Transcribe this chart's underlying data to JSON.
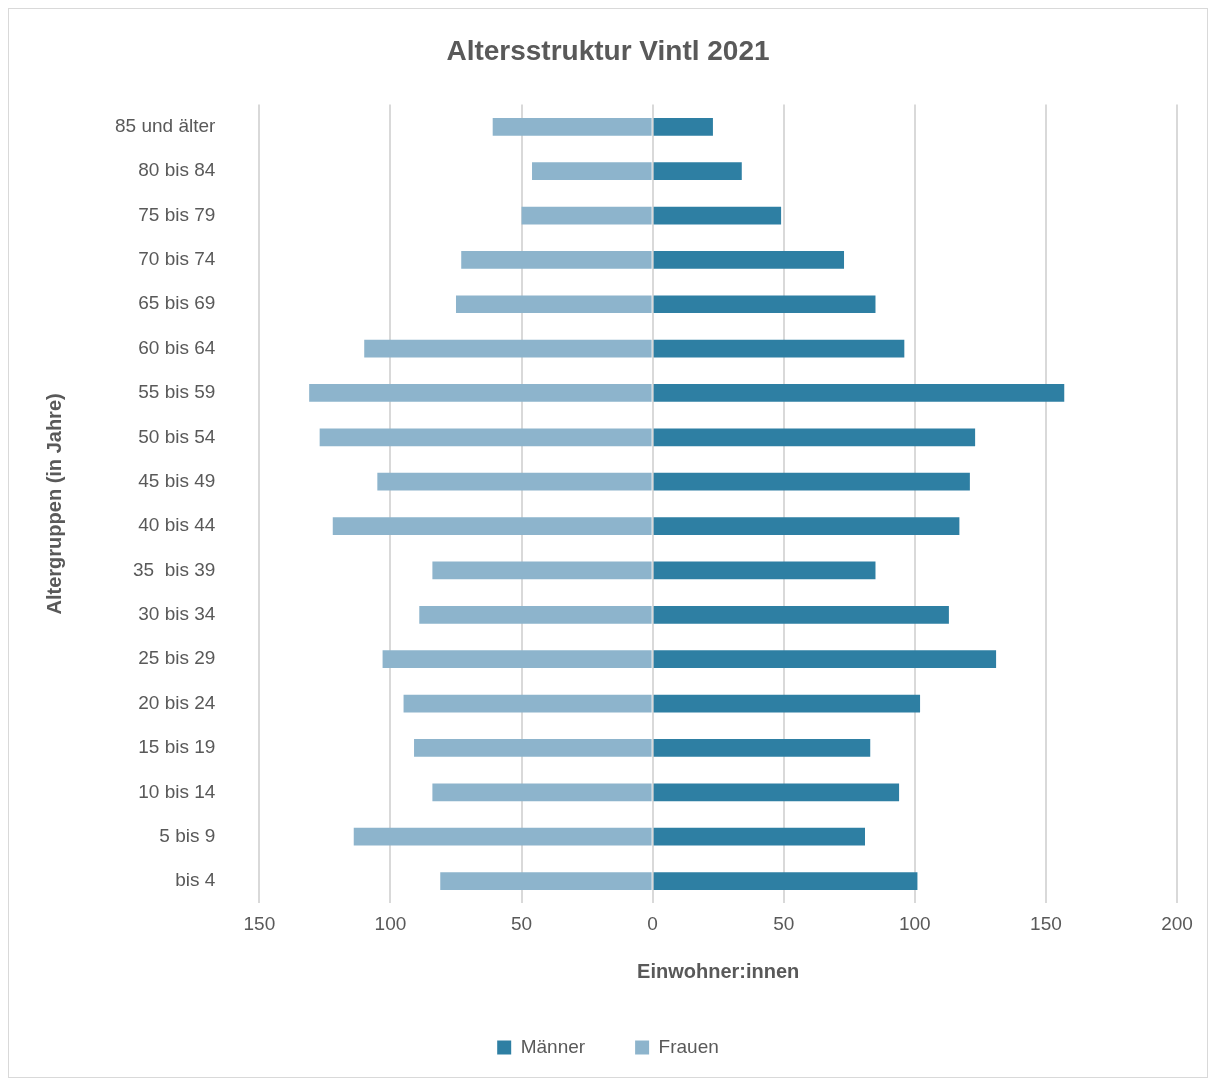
{
  "chart_data": {
    "type": "bar",
    "orientation": "horizontal",
    "stacked": true,
    "title": "Altersstruktur Vintl 2021",
    "xlabel": "Einwohner:innen",
    "ylabel": "Altergruppen (in Jahre)",
    "categories": [
      "85 und älter",
      "80 bis 84",
      "75 bis 79",
      "70 bis 74",
      "65 bis 69",
      "60 bis 64",
      "55 bis 59",
      "50 bis 54",
      "45 bis 49",
      "40 bis 44",
      "35  bis 39",
      "30 bis 34",
      "25 bis 29",
      "20 bis 24",
      "15 bis 19",
      "10 bis 14",
      "5 bis 9",
      "bis 4"
    ],
    "series": [
      {
        "name": "Männer",
        "color": "#2e7fa3",
        "values": [
          23,
          34,
          49,
          73,
          85,
          96,
          157,
          123,
          121,
          117,
          85,
          113,
          131,
          102,
          83,
          94,
          81,
          101
        ]
      },
      {
        "name": "Frauen",
        "color": "#8db4cc",
        "values": [
          -61,
          -46,
          -50,
          -73,
          -75,
          -110,
          -131,
          -127,
          -105,
          -122,
          -84,
          -89,
          -103,
          -95,
          -91,
          -84,
          -114,
          -81
        ]
      }
    ],
    "xlim": [
      -150,
      200
    ],
    "xticks": [
      {
        "value": -150,
        "label": "150"
      },
      {
        "value": -100,
        "label": "100"
      },
      {
        "value": -50,
        "label": "50"
      },
      0,
      50,
      100,
      150,
      200
    ],
    "grid": "x",
    "legend": "bottom"
  }
}
